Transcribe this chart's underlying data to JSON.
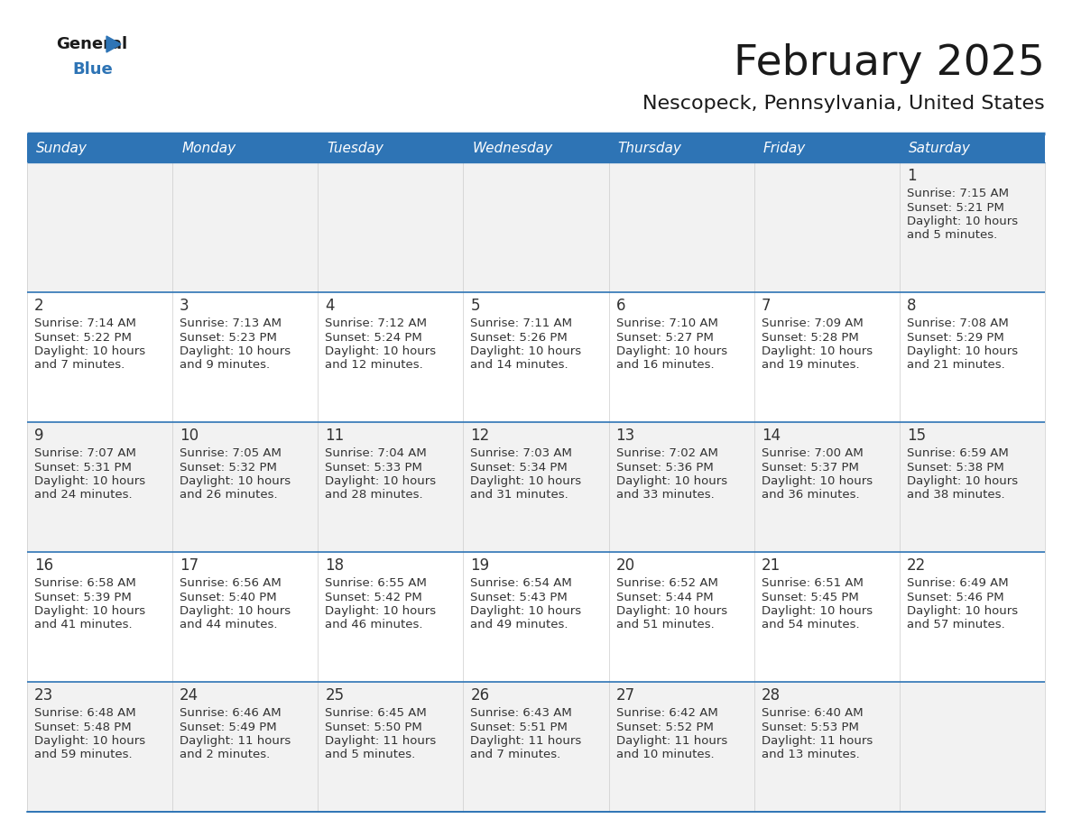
{
  "title": "February 2025",
  "subtitle": "Nescopeck, Pennsylvania, United States",
  "days_of_week": [
    "Sunday",
    "Monday",
    "Tuesday",
    "Wednesday",
    "Thursday",
    "Friday",
    "Saturday"
  ],
  "header_bg": "#2E74B5",
  "header_text": "#FFFFFF",
  "cell_bg_odd": "#F2F2F2",
  "cell_bg_even": "#FFFFFF",
  "border_color": "#2E74B5",
  "row_border_color": "#2E74B5",
  "text_color": "#333333",
  "title_color": "#1a1a1a",
  "logo_black": "#1a1a1a",
  "logo_blue": "#2E74B5",
  "triangle_color": "#2E74B5",
  "calendar_data": [
    [
      null,
      null,
      null,
      null,
      null,
      null,
      {
        "day": "1",
        "sunrise": "7:15 AM",
        "sunset": "5:21 PM",
        "daylight_line1": "10 hours",
        "daylight_line2": "and 5 minutes."
      }
    ],
    [
      {
        "day": "2",
        "sunrise": "7:14 AM",
        "sunset": "5:22 PM",
        "daylight_line1": "10 hours",
        "daylight_line2": "and 7 minutes."
      },
      {
        "day": "3",
        "sunrise": "7:13 AM",
        "sunset": "5:23 PM",
        "daylight_line1": "10 hours",
        "daylight_line2": "and 9 minutes."
      },
      {
        "day": "4",
        "sunrise": "7:12 AM",
        "sunset": "5:24 PM",
        "daylight_line1": "10 hours",
        "daylight_line2": "and 12 minutes."
      },
      {
        "day": "5",
        "sunrise": "7:11 AM",
        "sunset": "5:26 PM",
        "daylight_line1": "10 hours",
        "daylight_line2": "and 14 minutes."
      },
      {
        "day": "6",
        "sunrise": "7:10 AM",
        "sunset": "5:27 PM",
        "daylight_line1": "10 hours",
        "daylight_line2": "and 16 minutes."
      },
      {
        "day": "7",
        "sunrise": "7:09 AM",
        "sunset": "5:28 PM",
        "daylight_line1": "10 hours",
        "daylight_line2": "and 19 minutes."
      },
      {
        "day": "8",
        "sunrise": "7:08 AM",
        "sunset": "5:29 PM",
        "daylight_line1": "10 hours",
        "daylight_line2": "and 21 minutes."
      }
    ],
    [
      {
        "day": "9",
        "sunrise": "7:07 AM",
        "sunset": "5:31 PM",
        "daylight_line1": "10 hours",
        "daylight_line2": "and 24 minutes."
      },
      {
        "day": "10",
        "sunrise": "7:05 AM",
        "sunset": "5:32 PM",
        "daylight_line1": "10 hours",
        "daylight_line2": "and 26 minutes."
      },
      {
        "day": "11",
        "sunrise": "7:04 AM",
        "sunset": "5:33 PM",
        "daylight_line1": "10 hours",
        "daylight_line2": "and 28 minutes."
      },
      {
        "day": "12",
        "sunrise": "7:03 AM",
        "sunset": "5:34 PM",
        "daylight_line1": "10 hours",
        "daylight_line2": "and 31 minutes."
      },
      {
        "day": "13",
        "sunrise": "7:02 AM",
        "sunset": "5:36 PM",
        "daylight_line1": "10 hours",
        "daylight_line2": "and 33 minutes."
      },
      {
        "day": "14",
        "sunrise": "7:00 AM",
        "sunset": "5:37 PM",
        "daylight_line1": "10 hours",
        "daylight_line2": "and 36 minutes."
      },
      {
        "day": "15",
        "sunrise": "6:59 AM",
        "sunset": "5:38 PM",
        "daylight_line1": "10 hours",
        "daylight_line2": "and 38 minutes."
      }
    ],
    [
      {
        "day": "16",
        "sunrise": "6:58 AM",
        "sunset": "5:39 PM",
        "daylight_line1": "10 hours",
        "daylight_line2": "and 41 minutes."
      },
      {
        "day": "17",
        "sunrise": "6:56 AM",
        "sunset": "5:40 PM",
        "daylight_line1": "10 hours",
        "daylight_line2": "and 44 minutes."
      },
      {
        "day": "18",
        "sunrise": "6:55 AM",
        "sunset": "5:42 PM",
        "daylight_line1": "10 hours",
        "daylight_line2": "and 46 minutes."
      },
      {
        "day": "19",
        "sunrise": "6:54 AM",
        "sunset": "5:43 PM",
        "daylight_line1": "10 hours",
        "daylight_line2": "and 49 minutes."
      },
      {
        "day": "20",
        "sunrise": "6:52 AM",
        "sunset": "5:44 PM",
        "daylight_line1": "10 hours",
        "daylight_line2": "and 51 minutes."
      },
      {
        "day": "21",
        "sunrise": "6:51 AM",
        "sunset": "5:45 PM",
        "daylight_line1": "10 hours",
        "daylight_line2": "and 54 minutes."
      },
      {
        "day": "22",
        "sunrise": "6:49 AM",
        "sunset": "5:46 PM",
        "daylight_line1": "10 hours",
        "daylight_line2": "and 57 minutes."
      }
    ],
    [
      {
        "day": "23",
        "sunrise": "6:48 AM",
        "sunset": "5:48 PM",
        "daylight_line1": "10 hours",
        "daylight_line2": "and 59 minutes."
      },
      {
        "day": "24",
        "sunrise": "6:46 AM",
        "sunset": "5:49 PM",
        "daylight_line1": "11 hours",
        "daylight_line2": "and 2 minutes."
      },
      {
        "day": "25",
        "sunrise": "6:45 AM",
        "sunset": "5:50 PM",
        "daylight_line1": "11 hours",
        "daylight_line2": "and 5 minutes."
      },
      {
        "day": "26",
        "sunrise": "6:43 AM",
        "sunset": "5:51 PM",
        "daylight_line1": "11 hours",
        "daylight_line2": "and 7 minutes."
      },
      {
        "day": "27",
        "sunrise": "6:42 AM",
        "sunset": "5:52 PM",
        "daylight_line1": "11 hours",
        "daylight_line2": "and 10 minutes."
      },
      {
        "day": "28",
        "sunrise": "6:40 AM",
        "sunset": "5:53 PM",
        "daylight_line1": "11 hours",
        "daylight_line2": "and 13 minutes."
      },
      null
    ]
  ]
}
